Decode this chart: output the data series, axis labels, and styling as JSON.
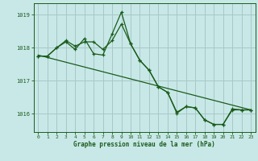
{
  "background_color": "#c8e8e8",
  "grid_color": "#a8c8c8",
  "line_color": "#1a5c1a",
  "xlabel": "Graphe pression niveau de la mer (hPa)",
  "xlim": [
    -0.5,
    23.5
  ],
  "ylim": [
    1015.45,
    1019.35
  ],
  "yticks": [
    1016,
    1017,
    1018,
    1019
  ],
  "xticks": [
    0,
    1,
    2,
    3,
    4,
    5,
    6,
    7,
    8,
    9,
    10,
    11,
    12,
    13,
    14,
    15,
    16,
    17,
    18,
    19,
    20,
    21,
    22,
    23
  ],
  "series1_x": [
    0,
    1,
    2,
    3,
    4,
    5,
    6,
    7,
    8,
    9,
    10,
    11,
    12,
    13,
    14,
    15,
    16,
    17,
    18,
    19,
    20,
    21,
    22,
    23
  ],
  "series1_y": [
    1017.75,
    1017.75,
    1018.0,
    1018.18,
    1017.95,
    1018.28,
    1017.82,
    1017.78,
    1018.42,
    1019.08,
    1018.12,
    1017.62,
    1017.32,
    1016.82,
    1016.65,
    1016.02,
    1016.22,
    1016.18,
    1015.82,
    1015.68,
    1015.68,
    1016.12,
    1016.12,
    1016.12
  ],
  "series2_x": [
    0,
    1,
    2,
    3,
    4,
    5,
    6,
    7,
    8,
    9,
    10,
    11,
    12,
    13,
    14,
    15,
    16,
    17,
    18,
    19,
    20,
    21,
    22,
    23
  ],
  "series2_y": [
    1017.75,
    1017.75,
    1018.0,
    1018.22,
    1018.05,
    1018.18,
    1018.18,
    1017.95,
    1018.22,
    1018.72,
    1018.12,
    1017.62,
    1017.32,
    1016.82,
    1016.65,
    1016.05,
    1016.22,
    1016.18,
    1015.82,
    1015.68,
    1015.68,
    1016.15,
    1016.12,
    1016.12
  ],
  "trend_x": [
    0,
    23
  ],
  "trend_y": [
    1017.78,
    1016.12
  ]
}
